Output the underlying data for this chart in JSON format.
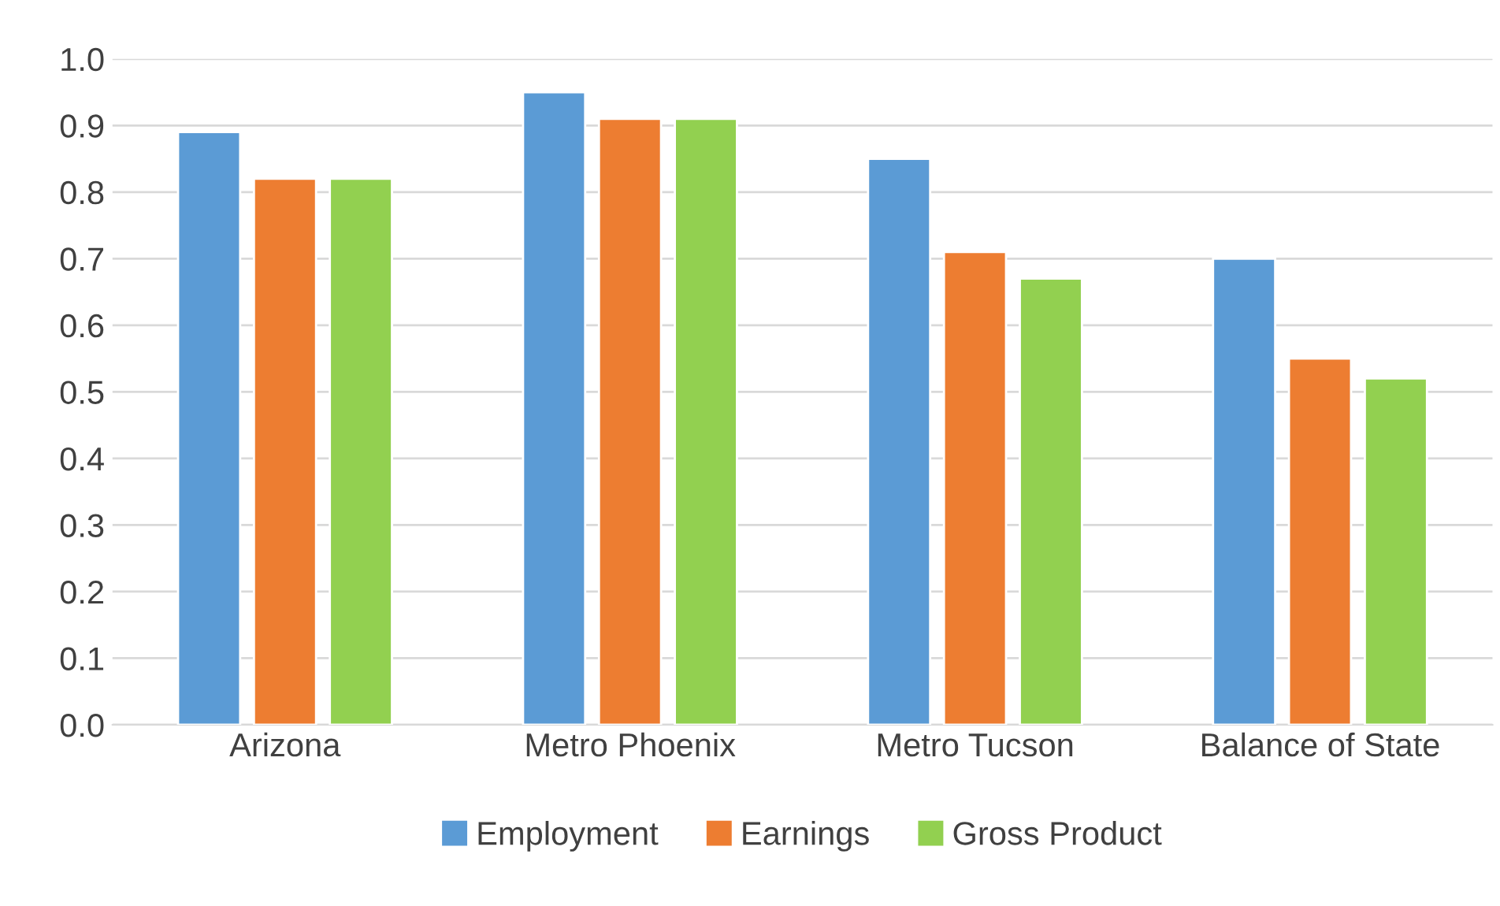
{
  "chart_data": {
    "type": "bar",
    "categories": [
      "Arizona",
      "Metro Phoenix",
      "Metro Tucson",
      "Balance of State"
    ],
    "series": [
      {
        "name": "Employment",
        "color": "#5b9bd5",
        "values": [
          0.89,
          0.95,
          0.85,
          0.7
        ]
      },
      {
        "name": "Earnings",
        "color": "#ed7d31",
        "values": [
          0.82,
          0.91,
          0.71,
          0.55
        ]
      },
      {
        "name": "Gross Product",
        "color": "#92d050",
        "values": [
          0.82,
          0.91,
          0.67,
          0.52
        ]
      }
    ],
    "ylim": [
      0,
      1.0
    ],
    "yticks": [
      {
        "value": 0,
        "label": "0.0"
      },
      {
        "value": 0.1,
        "label": "0.1"
      },
      {
        "value": 0.2,
        "label": "0.2"
      },
      {
        "value": 0.3,
        "label": "0.3"
      },
      {
        "value": 0.4,
        "label": "0.4"
      },
      {
        "value": 0.5,
        "label": "0.5"
      },
      {
        "value": 0.6,
        "label": "0.6"
      },
      {
        "value": 0.7,
        "label": "0.7"
      },
      {
        "value": 0.8,
        "label": "0.8"
      },
      {
        "value": 0.9,
        "label": "0.9"
      },
      {
        "value": 1.0,
        "label": "1.0"
      }
    ],
    "grid": "y",
    "legend": "bottom"
  }
}
